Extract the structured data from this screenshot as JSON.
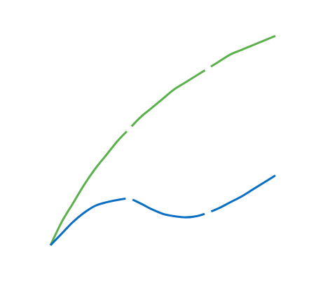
{
  "chart_data": {
    "type": "line",
    "title": "",
    "xlabel": "",
    "ylabel": "",
    "axes_visible": false,
    "grid": false,
    "legend": "none",
    "xlim": [
      0,
      1
    ],
    "ylim": [
      0,
      1
    ],
    "series": [
      {
        "color": "#5ab14b",
        "x": [
          0.0,
          0.05,
          0.1,
          0.15,
          0.2,
          0.25,
          0.3,
          0.35,
          0.4,
          0.45,
          0.5,
          0.55,
          0.6,
          0.65,
          0.7,
          0.75,
          0.8,
          0.85,
          0.9,
          0.95,
          1.0
        ],
        "y": [
          0.0,
          0.1,
          0.18,
          0.26,
          0.33,
          0.39,
          0.45,
          0.5,
          0.55,
          0.59,
          0.63,
          0.67,
          0.7,
          0.73,
          0.76,
          0.79,
          0.82,
          0.84,
          0.86,
          0.88,
          0.9
        ],
        "gaps_after_x": [
          0.35,
          0.7
        ]
      },
      {
        "color": "#0a6fc2",
        "x": [
          0.0,
          0.05,
          0.1,
          0.15,
          0.2,
          0.25,
          0.3,
          0.35,
          0.4,
          0.45,
          0.5,
          0.55,
          0.6,
          0.65,
          0.7,
          0.75,
          0.8,
          0.85,
          0.9,
          0.95,
          1.0
        ],
        "y": [
          0.0,
          0.05,
          0.1,
          0.14,
          0.17,
          0.185,
          0.195,
          0.2,
          0.18,
          0.155,
          0.135,
          0.125,
          0.12,
          0.125,
          0.14,
          0.16,
          0.185,
          0.21,
          0.24,
          0.27,
          0.3
        ],
        "gaps_after_x": [
          0.35,
          0.7
        ]
      }
    ]
  }
}
